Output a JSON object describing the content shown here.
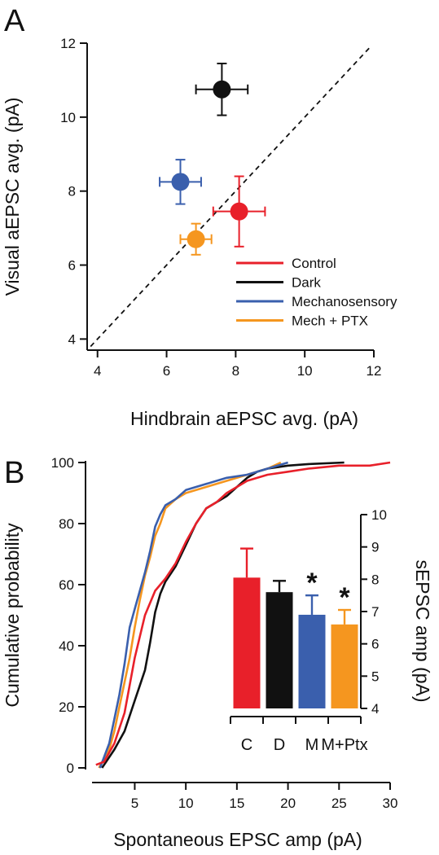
{
  "chart_data": [
    {
      "panel_label": "A",
      "type": "scatter",
      "xlabel": "Hindbrain aEPSC avg. (pA)",
      "ylabel": "Visual aEPSC avg. (pA)",
      "xlim": [
        3.7,
        12
      ],
      "ylim": [
        3.7,
        12
      ],
      "xticks": [
        4,
        6,
        8,
        10,
        12
      ],
      "yticks": [
        4,
        6,
        8,
        10,
        12
      ],
      "identity_line": true,
      "legend_position": "bottom-right",
      "points": [
        {
          "name": "Control",
          "color": "#e8202a",
          "x": 8.1,
          "y": 7.45,
          "xerr": 0.75,
          "yerr": 0.95
        },
        {
          "name": "Dark",
          "color": "#111111",
          "x": 7.6,
          "y": 10.75,
          "xerr": 0.75,
          "yerr": 0.7
        },
        {
          "name": "Mechanosensory",
          "color": "#3a5fad",
          "x": 6.4,
          "y": 8.25,
          "xerr": 0.6,
          "yerr": 0.6
        },
        {
          "name": "Mech + PTX",
          "color": "#f5961f",
          "x": 6.85,
          "y": 6.7,
          "xerr": 0.45,
          "yerr": 0.42
        }
      ]
    },
    {
      "panel_label": "B",
      "type": "line",
      "xlabel": "Spontaneous EPSC amp (pA)",
      "ylabel": "Cumulative probability",
      "xlim": [
        0.5,
        30
      ],
      "ylim": [
        0,
        100
      ],
      "xticks": [
        5,
        10,
        15,
        20,
        25,
        30
      ],
      "yticks": [
        0,
        20,
        40,
        60,
        80,
        100
      ],
      "series": [
        {
          "name": "Control",
          "color": "#e8202a",
          "x": [
            1.2,
            2,
            3,
            4,
            5,
            6,
            7,
            8,
            9,
            10,
            11,
            12,
            13,
            14,
            15,
            16,
            17,
            18,
            20,
            22,
            25,
            28,
            30
          ],
          "y": [
            1,
            2,
            8,
            18,
            36,
            50,
            58,
            62,
            67,
            74,
            80,
            85,
            87,
            90,
            92,
            94,
            95,
            96,
            97,
            98,
            99,
            99,
            100
          ]
        },
        {
          "name": "Dark",
          "color": "#111111",
          "x": [
            1.8,
            3,
            4,
            5,
            5.5,
            6,
            6.5,
            7,
            7.5,
            8,
            9,
            10,
            11,
            12,
            13,
            14,
            15,
            16,
            17,
            18,
            20,
            22,
            25.5
          ],
          "y": [
            0,
            6,
            12,
            22,
            27,
            32,
            41,
            51,
            57,
            61,
            66,
            73,
            80,
            85,
            87,
            89,
            92,
            95,
            97,
            98,
            99,
            99.5,
            100
          ]
        },
        {
          "name": "Mechanosensory",
          "color": "#3a5fad",
          "x": [
            1.6,
            2.5,
            3,
            3.5,
            4,
            4.5,
            5,
            5.5,
            6,
            6.5,
            7,
            7.5,
            8,
            9,
            10,
            12,
            14,
            16,
            18,
            20
          ],
          "y": [
            0,
            8,
            16,
            24,
            34,
            46,
            52,
            58,
            64,
            71,
            79,
            83,
            86,
            88,
            91,
            93,
            95,
            96,
            98,
            100
          ]
        },
        {
          "name": "Mech + PTX",
          "color": "#f5961f",
          "x": [
            1.5,
            2.5,
            3,
            3.5,
            4,
            4.5,
            5,
            5.5,
            6,
            6.5,
            7,
            7.5,
            8,
            9,
            10,
            12,
            14,
            16,
            18,
            19.3
          ],
          "y": [
            0,
            6,
            12,
            20,
            28,
            36,
            46,
            55,
            63,
            69,
            76,
            80,
            85,
            88,
            90,
            92,
            94,
            96,
            98,
            100
          ]
        }
      ]
    },
    {
      "panel_label": "B inset",
      "type": "bar",
      "ylabel": "sEPSC amp (pA)",
      "ylim": [
        4,
        10
      ],
      "yticks": [
        4,
        5,
        6,
        7,
        8,
        9,
        10
      ],
      "categories": [
        "C",
        "D",
        "M",
        "M+Ptx"
      ],
      "values": [
        8.05,
        7.6,
        6.9,
        6.6
      ],
      "errors": [
        0.9,
        0.35,
        0.6,
        0.45
      ],
      "colors": [
        "#e8202a",
        "#111111",
        "#3a5fad",
        "#f5961f"
      ],
      "significance": [
        "",
        "",
        "*",
        "*"
      ]
    }
  ]
}
